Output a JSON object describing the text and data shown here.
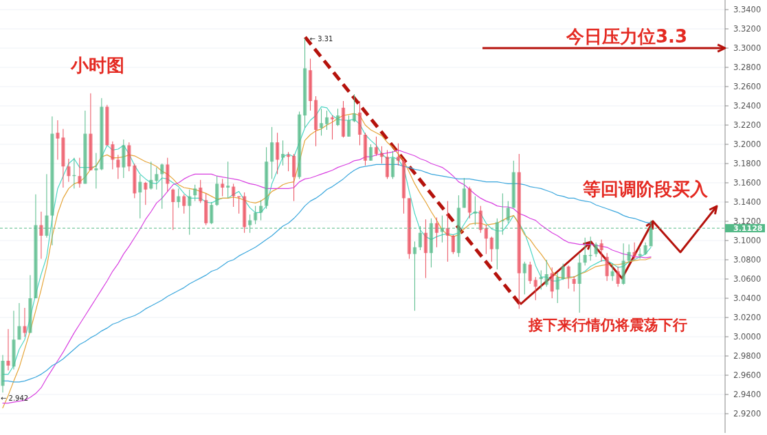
{
  "chart_data": {
    "type": "candlestick",
    "title": "小时图",
    "categories": [
      null,
      null,
      null,
      null,
      null,
      null,
      null,
      null,
      null,
      null,
      null,
      null,
      null,
      null,
      null,
      null,
      null,
      null,
      null,
      null,
      null,
      null,
      null,
      null,
      null,
      null,
      null,
      null,
      null,
      null,
      null,
      null,
      null,
      null,
      null,
      null,
      null,
      null,
      null,
      null,
      null,
      null,
      null,
      null,
      null,
      null,
      null,
      null,
      null,
      null,
      null,
      null,
      null,
      null,
      null,
      null,
      null,
      null,
      null,
      null,
      null,
      null,
      null,
      null,
      null,
      null,
      null,
      null,
      null,
      null,
      null,
      null,
      null,
      null,
      null,
      null,
      null,
      null,
      null,
      null,
      null,
      null,
      null,
      null,
      null,
      null,
      null,
      null,
      null,
      null,
      null,
      null,
      null,
      null,
      null,
      null,
      null,
      null,
      null,
      null,
      null,
      null,
      null,
      null,
      null,
      null,
      null,
      null,
      null,
      null,
      null,
      null,
      null,
      null,
      null,
      null,
      null,
      null,
      null
    ],
    "ohlc": [
      [
        2.949,
        2.981,
        2.942,
        2.975
      ],
      [
        2.975,
        3.008,
        2.965,
        2.97
      ],
      [
        2.969,
        3.027,
        2.966,
        2.997
      ],
      [
        2.997,
        3.035,
        2.997,
        3.011
      ],
      [
        3.011,
        3.03,
        3.0,
        3.004
      ],
      [
        3.004,
        3.064,
        3.004,
        3.04
      ],
      [
        3.04,
        3.148,
        3.04,
        3.116
      ],
      [
        3.116,
        3.13,
        3.081,
        3.105
      ],
      [
        3.105,
        3.169,
        3.103,
        3.126
      ],
      [
        3.126,
        3.229,
        3.095,
        3.211
      ],
      [
        3.212,
        3.225,
        3.184,
        3.206
      ],
      [
        3.207,
        3.216,
        3.155,
        3.177
      ],
      [
        3.177,
        3.185,
        3.161,
        3.167
      ],
      [
        3.167,
        3.186,
        3.154,
        3.168
      ],
      [
        3.167,
        3.186,
        3.155,
        3.159
      ],
      [
        3.159,
        3.235,
        3.159,
        3.211
      ],
      [
        3.211,
        3.253,
        3.173,
        3.173
      ],
      [
        3.173,
        3.191,
        3.154,
        3.175
      ],
      [
        3.174,
        3.248,
        3.173,
        3.239
      ],
      [
        3.239,
        3.241,
        3.199,
        3.199
      ],
      [
        3.2,
        3.203,
        3.174,
        3.184
      ],
      [
        3.184,
        3.189,
        3.164,
        3.176
      ],
      [
        3.176,
        3.205,
        3.165,
        3.199
      ],
      [
        3.199,
        3.202,
        3.172,
        3.177
      ],
      [
        3.178,
        3.18,
        3.144,
        3.149
      ],
      [
        3.15,
        3.168,
        3.123,
        3.161
      ],
      [
        3.16,
        3.161,
        3.137,
        3.153
      ],
      [
        3.154,
        3.182,
        3.153,
        3.163
      ],
      [
        3.162,
        3.176,
        3.153,
        3.169
      ],
      [
        3.169,
        3.18,
        3.133,
        3.179
      ],
      [
        3.179,
        3.186,
        3.151,
        3.159
      ],
      [
        3.153,
        3.154,
        3.111,
        3.14
      ],
      [
        3.14,
        3.154,
        3.134,
        3.146
      ],
      [
        3.146,
        3.148,
        3.128,
        3.136
      ],
      [
        3.136,
        3.153,
        3.106,
        3.146
      ],
      [
        3.147,
        3.158,
        3.141,
        3.154
      ],
      [
        3.155,
        3.163,
        3.139,
        3.141
      ],
      [
        3.142,
        3.149,
        3.116,
        3.118
      ],
      [
        3.118,
        3.14,
        3.117,
        3.137
      ],
      [
        3.137,
        3.167,
        3.136,
        3.159
      ],
      [
        3.159,
        3.164,
        3.146,
        3.155
      ],
      [
        3.155,
        3.182,
        3.144,
        3.157
      ],
      [
        3.156,
        3.159,
        3.135,
        3.146
      ],
      [
        3.146,
        3.146,
        3.128,
        3.145
      ],
      [
        3.146,
        3.15,
        3.108,
        3.114
      ],
      [
        3.116,
        3.127,
        3.108,
        3.121
      ],
      [
        3.121,
        3.136,
        3.117,
        3.129
      ],
      [
        3.129,
        3.142,
        3.121,
        3.136
      ],
      [
        3.136,
        3.197,
        3.133,
        3.182
      ],
      [
        3.182,
        3.218,
        3.164,
        3.202
      ],
      [
        3.202,
        3.212,
        3.169,
        3.184
      ],
      [
        3.186,
        3.204,
        3.178,
        3.19
      ],
      [
        3.189,
        3.192,
        3.172,
        3.187
      ],
      [
        3.188,
        3.19,
        3.141,
        3.166
      ],
      [
        3.166,
        3.234,
        3.164,
        3.231
      ],
      [
        3.23,
        3.31,
        3.217,
        3.279
      ],
      [
        3.277,
        3.289,
        3.235,
        3.245
      ],
      [
        3.246,
        3.25,
        3.198,
        3.215
      ],
      [
        3.217,
        3.237,
        3.209,
        3.222
      ],
      [
        3.221,
        3.235,
        3.215,
        3.228
      ],
      [
        3.228,
        3.23,
        3.205,
        3.226
      ],
      [
        3.22,
        3.237,
        3.219,
        3.23
      ],
      [
        3.238,
        3.245,
        3.207,
        3.208
      ],
      [
        3.208,
        3.23,
        3.208,
        3.225
      ],
      [
        3.224,
        3.252,
        3.223,
        3.232
      ],
      [
        3.233,
        3.245,
        3.199,
        3.21
      ],
      [
        3.21,
        3.212,
        3.178,
        3.183
      ],
      [
        3.183,
        3.2,
        3.183,
        3.197
      ],
      [
        3.197,
        3.208,
        3.188,
        3.19
      ],
      [
        3.191,
        3.198,
        3.18,
        3.187
      ],
      [
        3.187,
        3.194,
        3.164,
        3.166
      ],
      [
        3.166,
        3.193,
        3.164,
        3.186
      ],
      [
        3.187,
        3.201,
        3.178,
        3.183
      ],
      [
        3.183,
        3.185,
        3.128,
        3.144
      ],
      [
        3.144,
        3.144,
        3.081,
        3.086
      ],
      [
        3.086,
        3.099,
        3.027,
        3.093
      ],
      [
        3.093,
        3.115,
        3.09,
        3.108
      ],
      [
        3.108,
        3.122,
        3.061,
        3.087
      ],
      [
        3.087,
        3.123,
        3.072,
        3.118
      ],
      [
        3.118,
        3.124,
        3.093,
        3.108
      ],
      [
        3.109,
        3.126,
        3.098,
        3.113
      ],
      [
        3.113,
        3.141,
        3.078,
        3.105
      ],
      [
        3.105,
        3.106,
        3.086,
        3.088
      ],
      [
        3.087,
        3.147,
        3.083,
        3.134
      ],
      [
        3.134,
        3.165,
        3.134,
        3.154
      ],
      [
        3.154,
        3.156,
        3.123,
        3.129
      ],
      [
        3.128,
        3.146,
        3.116,
        3.13
      ],
      [
        3.131,
        3.136,
        3.108,
        3.111
      ],
      [
        3.113,
        3.116,
        3.086,
        3.102
      ],
      [
        3.103,
        3.104,
        3.078,
        3.091
      ],
      [
        3.091,
        3.123,
        3.07,
        3.119
      ],
      [
        3.12,
        3.149,
        3.106,
        3.121
      ],
      [
        3.121,
        3.141,
        3.118,
        3.134
      ],
      [
        3.134,
        3.183,
        3.134,
        3.171
      ],
      [
        3.171,
        3.19,
        3.029,
        3.066
      ],
      [
        3.066,
        3.078,
        3.044,
        3.076
      ],
      [
        3.075,
        3.078,
        3.055,
        3.058
      ],
      [
        3.059,
        3.062,
        3.038,
        3.052
      ],
      [
        3.06,
        3.069,
        3.049,
        3.062
      ],
      [
        3.054,
        3.08,
        3.052,
        3.065
      ],
      [
        3.066,
        3.072,
        3.04,
        3.047
      ],
      [
        3.049,
        3.067,
        3.035,
        3.062
      ],
      [
        3.06,
        3.076,
        3.059,
        3.073
      ],
      [
        3.073,
        3.074,
        3.05,
        3.062
      ],
      [
        3.06,
        3.063,
        3.047,
        3.055
      ],
      [
        3.055,
        3.086,
        3.025,
        3.077
      ],
      [
        3.077,
        3.103,
        3.074,
        3.085
      ],
      [
        3.084,
        3.104,
        3.079,
        3.085
      ],
      [
        3.086,
        3.098,
        3.083,
        3.096
      ],
      [
        3.097,
        3.101,
        3.078,
        3.09
      ],
      [
        3.083,
        3.087,
        3.058,
        3.063
      ],
      [
        3.063,
        3.076,
        3.058,
        3.068
      ],
      [
        3.068,
        3.073,
        3.052,
        3.055
      ],
      [
        3.055,
        3.097,
        3.054,
        3.079
      ],
      [
        3.079,
        3.096,
        3.076,
        3.088
      ],
      [
        3.088,
        3.098,
        3.08,
        3.084
      ],
      [
        3.084,
        3.092,
        3.081,
        3.086
      ],
      [
        3.086,
        3.098,
        3.085,
        3.095
      ],
      [
        3.094,
        3.121,
        3.094,
        3.1128
      ]
    ],
    "series": [
      {
        "type": "line",
        "color": "#4dd6c4",
        "values": [
          2.961,
          2.961,
          2.97,
          2.987,
          2.997,
          3.02,
          3.044,
          3.065,
          3.083,
          3.123,
          3.154,
          3.167,
          3.18,
          3.185,
          3.176,
          3.176,
          3.176,
          3.177,
          3.187,
          3.199,
          3.194,
          3.195,
          3.199,
          3.19,
          3.178,
          3.169,
          3.164,
          3.16,
          3.159,
          3.165,
          3.164,
          3.16,
          3.156,
          3.149,
          3.144,
          3.144,
          3.144,
          3.14,
          3.139,
          3.142,
          3.144,
          3.144,
          3.148,
          3.151,
          3.142,
          3.134,
          3.129,
          3.129,
          3.136,
          3.159,
          3.173,
          3.187,
          3.19,
          3.187,
          3.202,
          3.217,
          3.225,
          3.23,
          3.239,
          3.238,
          3.23,
          3.226,
          3.225,
          3.225,
          3.226,
          3.221,
          3.21,
          3.204,
          3.199,
          3.19,
          3.185,
          3.187,
          3.184,
          3.176,
          3.151,
          3.128,
          3.111,
          3.104,
          3.101,
          3.104,
          3.106,
          3.107,
          3.106,
          3.108,
          3.117,
          3.126,
          3.13,
          3.128,
          3.118,
          3.112,
          3.11,
          3.11,
          3.117,
          3.126,
          3.118,
          3.108,
          3.092,
          3.074,
          3.062,
          3.062,
          3.058,
          3.058,
          3.06,
          3.062,
          3.062,
          3.065,
          3.068,
          3.073,
          3.076,
          3.079,
          3.079,
          3.076,
          3.072,
          3.073,
          3.078,
          3.08,
          3.083,
          3.086,
          3.093
        ]
      },
      {
        "type": "line",
        "color": "#e5a437",
        "values": [
          2.926,
          2.939,
          2.954,
          2.968,
          2.987,
          3.006,
          3.027,
          3.049,
          3.073,
          3.104,
          3.128,
          3.144,
          3.154,
          3.159,
          3.161,
          3.166,
          3.174,
          3.178,
          3.187,
          3.189,
          3.186,
          3.186,
          3.187,
          3.189,
          3.188,
          3.185,
          3.182,
          3.18,
          3.177,
          3.172,
          3.169,
          3.164,
          3.158,
          3.155,
          3.154,
          3.153,
          3.151,
          3.149,
          3.146,
          3.143,
          3.144,
          3.144,
          3.145,
          3.144,
          3.142,
          3.14,
          3.139,
          3.141,
          3.145,
          3.151,
          3.154,
          3.158,
          3.16,
          3.161,
          3.182,
          3.204,
          3.21,
          3.214,
          3.216,
          3.22,
          3.223,
          3.227,
          3.23,
          3.231,
          3.232,
          3.23,
          3.22,
          3.215,
          3.212,
          3.209,
          3.202,
          3.197,
          3.19,
          3.183,
          3.171,
          3.159,
          3.149,
          3.14,
          3.13,
          3.121,
          3.111,
          3.106,
          3.104,
          3.106,
          3.112,
          3.117,
          3.118,
          3.118,
          3.116,
          3.117,
          3.118,
          3.121,
          3.124,
          3.126,
          3.117,
          3.106,
          3.101,
          3.093,
          3.086,
          3.078,
          3.068,
          3.062,
          3.061,
          3.061,
          3.062,
          3.065,
          3.067,
          3.07,
          3.073,
          3.074,
          3.075,
          3.075,
          3.075,
          3.076,
          3.078,
          3.079,
          3.08,
          3.08,
          3.082
        ]
      },
      {
        "type": "line",
        "color": "#d83fe0",
        "values": [
          2.931,
          2.931,
          2.932,
          2.933,
          2.934,
          2.937,
          2.941,
          2.947,
          2.957,
          2.966,
          2.975,
          2.984,
          2.994,
          3.004,
          3.013,
          3.022,
          3.031,
          3.04,
          3.049,
          3.058,
          3.068,
          3.076,
          3.086,
          3.094,
          3.103,
          3.112,
          3.122,
          3.13,
          3.139,
          3.144,
          3.151,
          3.158,
          3.16,
          3.164,
          3.167,
          3.169,
          3.169,
          3.169,
          3.169,
          3.167,
          3.166,
          3.165,
          3.164,
          3.163,
          3.161,
          3.159,
          3.158,
          3.156,
          3.154,
          3.154,
          3.154,
          3.154,
          3.154,
          3.155,
          3.161,
          3.164,
          3.165,
          3.167,
          3.169,
          3.171,
          3.173,
          3.176,
          3.178,
          3.18,
          3.183,
          3.184,
          3.187,
          3.187,
          3.189,
          3.19,
          3.191,
          3.192,
          3.194,
          3.192,
          3.19,
          3.188,
          3.185,
          3.183,
          3.18,
          3.178,
          3.176,
          3.172,
          3.167,
          3.161,
          3.158,
          3.153,
          3.148,
          3.144,
          3.141,
          3.139,
          3.136,
          3.135,
          3.135,
          3.133,
          3.128,
          3.126,
          3.123,
          3.121,
          3.116,
          3.112,
          3.108,
          3.105,
          3.101,
          3.098,
          3.097,
          3.096,
          3.096,
          3.096,
          3.095,
          3.094,
          3.093,
          3.09,
          3.088,
          3.086,
          3.085,
          3.083,
          3.083,
          3.082,
          3.083
        ]
      },
      {
        "type": "line",
        "color": "#3ba7dd",
        "values": [
          2.954,
          2.954,
          2.953,
          2.953,
          2.954,
          2.956,
          2.958,
          2.961,
          2.965,
          2.97,
          2.973,
          2.977,
          2.982,
          2.987,
          2.992,
          2.995,
          2.999,
          3.002,
          3.006,
          3.009,
          3.013,
          3.015,
          3.018,
          3.02,
          3.022,
          3.025,
          3.029,
          3.032,
          3.035,
          3.038,
          3.042,
          3.045,
          3.048,
          3.051,
          3.055,
          3.058,
          3.061,
          3.064,
          3.068,
          3.07,
          3.074,
          3.078,
          3.08,
          3.084,
          3.087,
          3.09,
          3.093,
          3.097,
          3.101,
          3.105,
          3.11,
          3.115,
          3.118,
          3.123,
          3.129,
          3.136,
          3.141,
          3.144,
          3.148,
          3.153,
          3.156,
          3.16,
          3.164,
          3.169,
          3.173,
          3.176,
          3.177,
          3.178,
          3.179,
          3.179,
          3.179,
          3.179,
          3.179,
          3.177,
          3.176,
          3.174,
          3.173,
          3.171,
          3.169,
          3.168,
          3.167,
          3.166,
          3.165,
          3.164,
          3.164,
          3.164,
          3.163,
          3.162,
          3.161,
          3.161,
          3.161,
          3.16,
          3.159,
          3.159,
          3.159,
          3.158,
          3.156,
          3.155,
          3.154,
          3.152,
          3.15,
          3.147,
          3.146,
          3.144,
          3.144,
          3.142,
          3.141,
          3.14,
          3.137,
          3.135,
          3.133,
          3.131,
          3.129,
          3.126,
          3.124,
          3.123,
          3.121,
          3.119,
          3.118
        ]
      }
    ],
    "ylim": [
      2.9,
      3.35
    ],
    "yticks": [
      {
        "value": 2.92,
        "label": "2.9200"
      },
      {
        "value": 2.94,
        "label": "2.9400"
      },
      {
        "value": 2.96,
        "label": "2.9600"
      },
      {
        "value": 2.98,
        "label": "2.9800"
      },
      {
        "value": 3.0,
        "label": "3.0000"
      },
      {
        "value": 3.02,
        "label": "3.0200"
      },
      {
        "value": 3.04,
        "label": "3.0400"
      },
      {
        "value": 3.06,
        "label": "3.0600"
      },
      {
        "value": 3.08,
        "label": "3.0800"
      },
      {
        "value": 3.1,
        "label": "3.1000"
      },
      {
        "value": 3.12,
        "label": "3.1200"
      },
      {
        "value": 3.14,
        "label": "3.1400"
      },
      {
        "value": 3.16,
        "label": "3.1600"
      },
      {
        "value": 3.18,
        "label": "3.1800"
      },
      {
        "value": 3.2,
        "label": "3.2000"
      },
      {
        "value": 3.22,
        "label": "3.2200"
      },
      {
        "value": 3.24,
        "label": "3.2400"
      },
      {
        "value": 3.26,
        "label": "3.2600"
      },
      {
        "value": 3.28,
        "label": "3.2800"
      },
      {
        "value": 3.3,
        "label": "3.3000"
      },
      {
        "value": 3.32,
        "label": "3.3200"
      },
      {
        "value": 3.34,
        "label": "3.3400"
      }
    ],
    "ref_lines": [
      {
        "axis": "y",
        "value": 3.1128,
        "label": "3.1128",
        "color": "#53b987",
        "line_style": "dashed"
      }
    ],
    "annotations": [
      "今日压力位3.3",
      "等回调阶段买入",
      "接下来行情仍将震荡下行",
      "← 3.31",
      "← 2.942"
    ],
    "grid": "y",
    "tick_labels": "y"
  }
}
